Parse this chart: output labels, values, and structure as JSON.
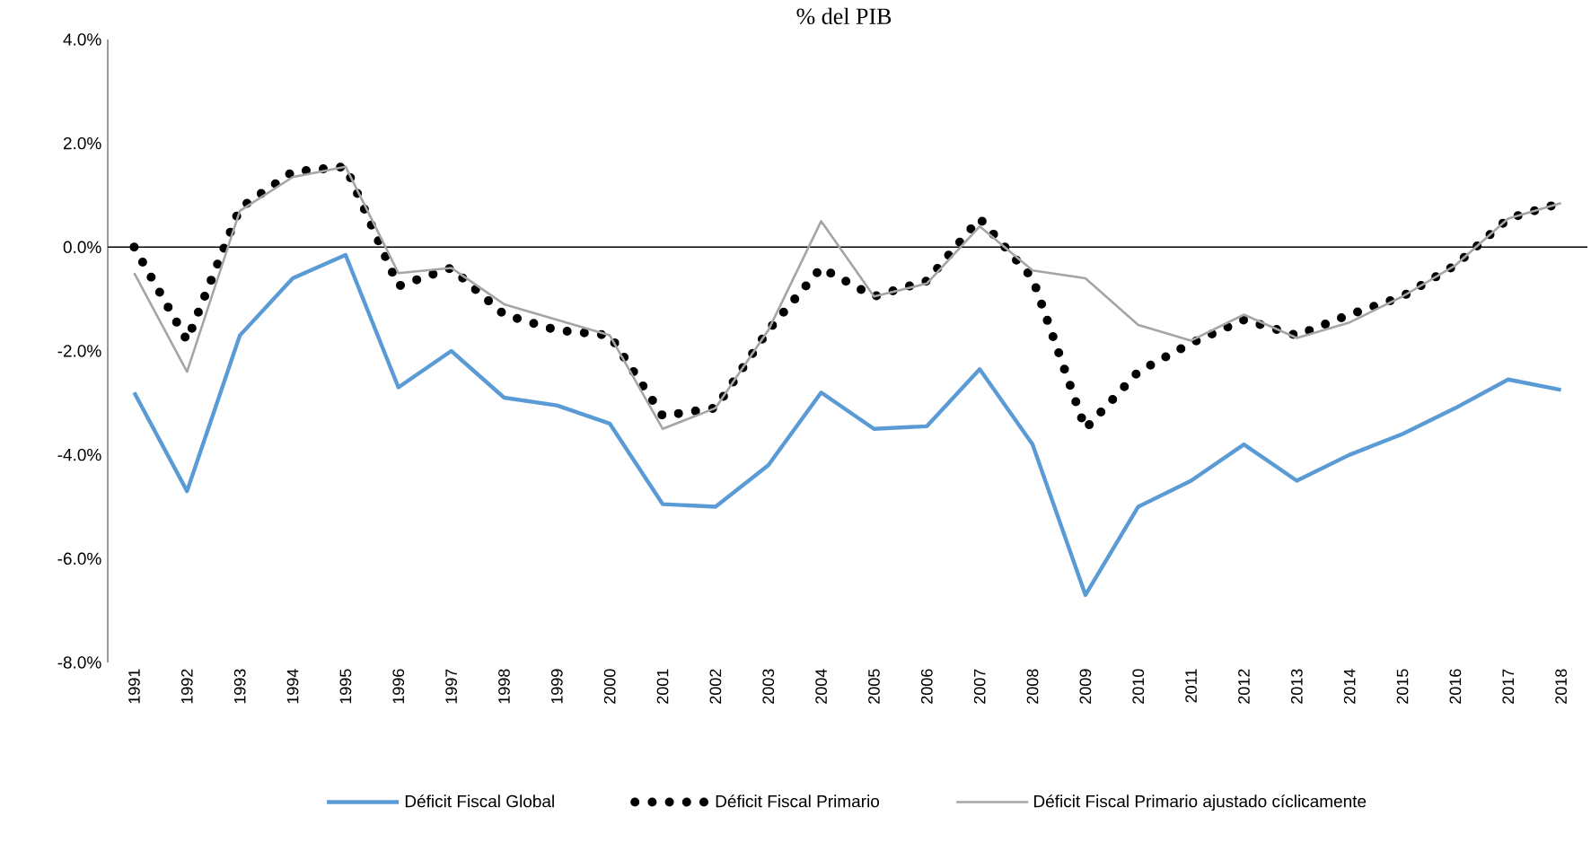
{
  "chart_data": {
    "type": "line",
    "title": "% del PIB",
    "categories": [
      "1991",
      "1992",
      "1993",
      "1994",
      "1995",
      "1996",
      "1997",
      "1998",
      "1999",
      "2000",
      "2001",
      "2002",
      "2003",
      "2004",
      "2005",
      "2006",
      "2007",
      "2008",
      "2009",
      "2010",
      "2011",
      "2012",
      "2013",
      "2014",
      "2015",
      "2016",
      "2017",
      "2018"
    ],
    "series": [
      {
        "name": "Déficit Fiscal Global",
        "color": "#5b9bd5",
        "line_style": "solid",
        "values": [
          -2.8,
          -4.7,
          -1.7,
          -0.6,
          -0.15,
          -2.7,
          -2.0,
          -2.9,
          -3.05,
          -3.4,
          -4.95,
          -5.0,
          -4.2,
          -2.8,
          -3.5,
          -3.45,
          -2.35,
          -3.8,
          -6.7,
          -5.0,
          -4.5,
          -3.8,
          -4.5,
          -4.0,
          -3.6,
          -3.1,
          -2.55,
          -2.75
        ]
      },
      {
        "name": "Déficit Fiscal Primario",
        "color": "#000000",
        "line_style": "dotted",
        "values": [
          0.0,
          -1.8,
          0.75,
          1.45,
          1.55,
          -0.75,
          -0.4,
          -1.3,
          -1.6,
          -1.7,
          -3.25,
          -3.1,
          -1.6,
          -0.4,
          -0.95,
          -0.65,
          0.55,
          -0.6,
          -3.5,
          -2.4,
          -1.85,
          -1.4,
          -1.7,
          -1.3,
          -0.95,
          -0.35,
          0.55,
          0.85
        ]
      },
      {
        "name": "Déficit Fiscal Primario ajustado cíclicamente",
        "color": "#a5a5a5",
        "line_style": "solid",
        "values": [
          -0.5,
          -2.4,
          0.7,
          1.35,
          1.55,
          -0.5,
          -0.4,
          -1.1,
          -1.4,
          -1.7,
          -3.5,
          -3.1,
          -1.6,
          0.5,
          -0.95,
          -0.7,
          0.4,
          -0.45,
          -0.6,
          -1.5,
          -1.8,
          -1.3,
          -1.75,
          -1.45,
          -0.95,
          -0.35,
          0.55,
          0.85
        ]
      }
    ],
    "ylim": [
      -8,
      4
    ],
    "yticks": [
      {
        "value": -8,
        "label": "-8.0%"
      },
      {
        "value": -6,
        "label": "-6.0%"
      },
      {
        "value": -4,
        "label": "-4.0%"
      },
      {
        "value": -2,
        "label": "-2.0%"
      },
      {
        "value": 0,
        "label": "0.0%"
      },
      {
        "value": 2,
        "label": "2.0%"
      },
      {
        "value": 4,
        "label": "4.0%"
      }
    ],
    "ref_lines": [
      {
        "axis": "y",
        "value": 0,
        "color": "#000000"
      }
    ],
    "grid": false,
    "legend": "bottom",
    "marker": "none"
  }
}
